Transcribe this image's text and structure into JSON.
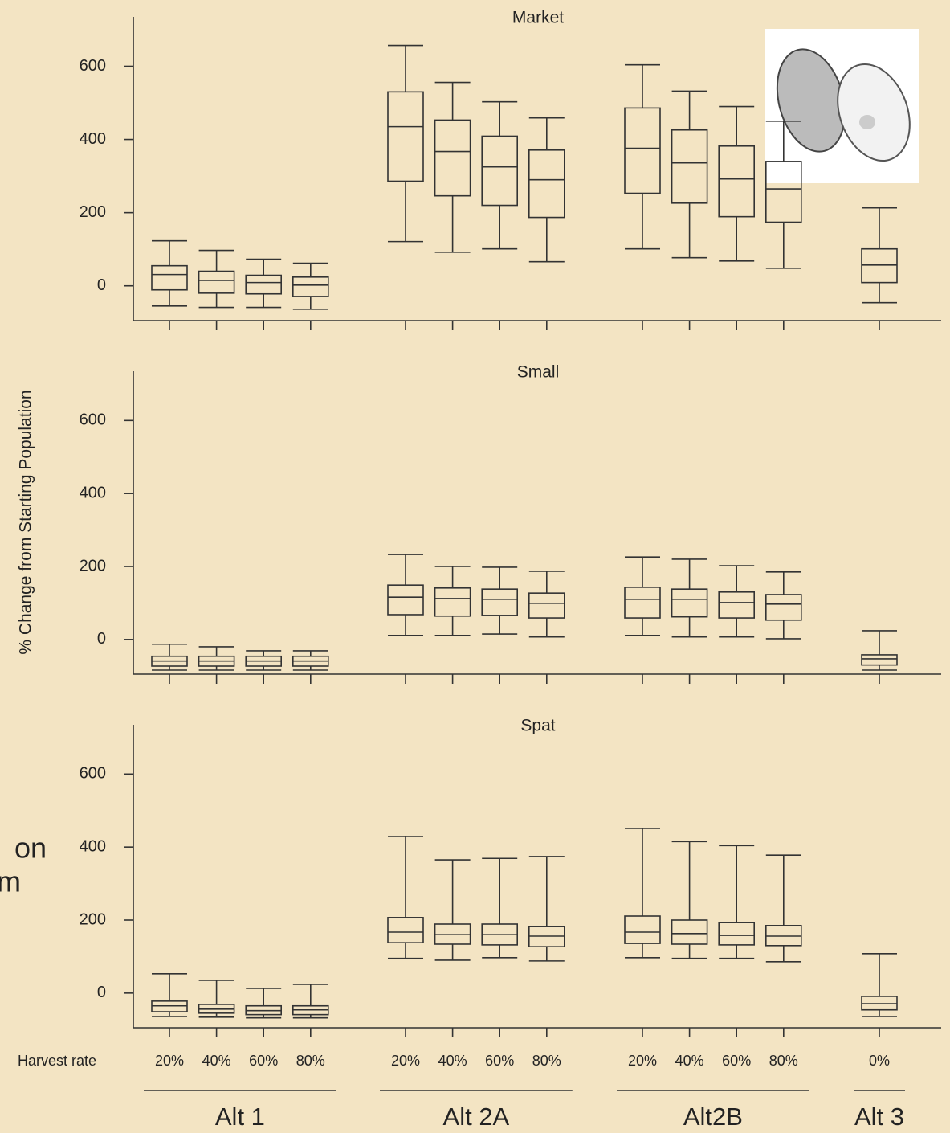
{
  "slide_text": [
    "on",
    "m"
  ],
  "ylabel": "% Change from Starting Population",
  "x_axis": {
    "label": "Harvest rate",
    "groups": [
      {
        "name": "Alt 1",
        "categories": [
          "20%",
          "40%",
          "60%",
          "80%"
        ]
      },
      {
        "name": "Alt 2A",
        "categories": [
          "20%",
          "40%",
          "60%",
          "80%"
        ]
      },
      {
        "name": "Alt2B",
        "categories": [
          "20%",
          "40%",
          "60%",
          "80%"
        ]
      },
      {
        "name": "Alt 3",
        "categories": [
          "0%"
        ]
      }
    ]
  },
  "chart_data": [
    {
      "type": "box",
      "title": "Market",
      "ylim": [
        -95,
        735
      ],
      "yticks": [
        0,
        200,
        400,
        600
      ],
      "color": "#333333",
      "groups": [
        [
          {
            "min": -55,
            "q1": -11,
            "median": 31,
            "q3": 55,
            "max": 123
          },
          {
            "min": -59,
            "q1": -20,
            "median": 15,
            "q3": 40,
            "max": 97
          },
          {
            "min": -59,
            "q1": -22,
            "median": 9,
            "q3": 29,
            "max": 73
          },
          {
            "min": -64,
            "q1": -29,
            "median": 2,
            "q3": 24,
            "max": 62
          }
        ],
        [
          {
            "min": 121,
            "q1": 286,
            "median": 435,
            "q3": 530,
            "max": 657
          },
          {
            "min": 92,
            "q1": 246,
            "median": 367,
            "q3": 453,
            "max": 556
          },
          {
            "min": 101,
            "q1": 220,
            "median": 325,
            "q3": 409,
            "max": 503
          },
          {
            "min": 66,
            "q1": 187,
            "median": 290,
            "q3": 371,
            "max": 459
          }
        ],
        [
          {
            "min": 101,
            "q1": 253,
            "median": 376,
            "q3": 486,
            "max": 604
          },
          {
            "min": 77,
            "q1": 226,
            "median": 336,
            "q3": 426,
            "max": 532
          },
          {
            "min": 68,
            "q1": 189,
            "median": 292,
            "q3": 382,
            "max": 490
          },
          {
            "min": 48,
            "q1": 174,
            "median": 265,
            "q3": 340,
            "max": 450
          }
        ],
        [
          {
            "min": -46,
            "q1": 9,
            "median": 57,
            "q3": 101,
            "max": 213
          }
        ]
      ]
    },
    {
      "type": "box",
      "title": "Small",
      "ylim": [
        -95,
        735
      ],
      "yticks": [
        0,
        200,
        400,
        600
      ],
      "color": "#333333",
      "groups": [
        [
          {
            "min": -84,
            "q1": -73,
            "median": -59,
            "q3": -46,
            "max": -13
          },
          {
            "min": -84,
            "q1": -73,
            "median": -59,
            "q3": -46,
            "max": -20
          },
          {
            "min": -84,
            "q1": -73,
            "median": -59,
            "q3": -46,
            "max": -31
          },
          {
            "min": -84,
            "q1": -73,
            "median": -59,
            "q3": -46,
            "max": -31
          }
        ],
        [
          {
            "min": 11,
            "q1": 68,
            "median": 116,
            "q3": 149,
            "max": 233
          },
          {
            "min": 11,
            "q1": 64,
            "median": 112,
            "q3": 141,
            "max": 200
          },
          {
            "min": 15,
            "q1": 66,
            "median": 110,
            "q3": 138,
            "max": 198
          },
          {
            "min": 7,
            "q1": 59,
            "median": 99,
            "q3": 127,
            "max": 187
          }
        ],
        [
          {
            "min": 11,
            "q1": 59,
            "median": 110,
            "q3": 143,
            "max": 226
          },
          {
            "min": 7,
            "q1": 62,
            "median": 110,
            "q3": 138,
            "max": 220
          },
          {
            "min": 7,
            "q1": 59,
            "median": 101,
            "q3": 130,
            "max": 202
          },
          {
            "min": 2,
            "q1": 53,
            "median": 97,
            "q3": 123,
            "max": 185
          }
        ],
        [
          {
            "min": -84,
            "q1": -70,
            "median": -53,
            "q3": -42,
            "max": 24
          }
        ]
      ]
    },
    {
      "type": "box",
      "title": "Spat",
      "ylim": [
        -95,
        735
      ],
      "yticks": [
        0,
        200,
        400,
        600
      ],
      "color": "#333333",
      "groups": [
        [
          {
            "min": -64,
            "q1": -51,
            "median": -35,
            "q3": -22,
            "max": 53
          },
          {
            "min": -66,
            "q1": -55,
            "median": -44,
            "q3": -31,
            "max": 35
          },
          {
            "min": -68,
            "q1": -59,
            "median": -48,
            "q3": -35,
            "max": 13
          },
          {
            "min": -68,
            "q1": -59,
            "median": -46,
            "q3": -35,
            "max": 24
          }
        ],
        [
          {
            "min": 95,
            "q1": 138,
            "median": 167,
            "q3": 207,
            "max": 429
          },
          {
            "min": 90,
            "q1": 134,
            "median": 160,
            "q3": 189,
            "max": 365
          },
          {
            "min": 97,
            "q1": 132,
            "median": 160,
            "q3": 189,
            "max": 369
          },
          {
            "min": 88,
            "q1": 127,
            "median": 156,
            "q3": 182,
            "max": 374
          }
        ],
        [
          {
            "min": 97,
            "q1": 136,
            "median": 167,
            "q3": 211,
            "max": 451
          },
          {
            "min": 95,
            "q1": 134,
            "median": 163,
            "q3": 200,
            "max": 415
          },
          {
            "min": 95,
            "q1": 132,
            "median": 158,
            "q3": 193,
            "max": 404
          },
          {
            "min": 86,
            "q1": 130,
            "median": 156,
            "q3": 185,
            "max": 378
          }
        ],
        [
          {
            "min": -64,
            "q1": -46,
            "median": -29,
            "q3": -9,
            "max": 108
          }
        ]
      ]
    }
  ]
}
